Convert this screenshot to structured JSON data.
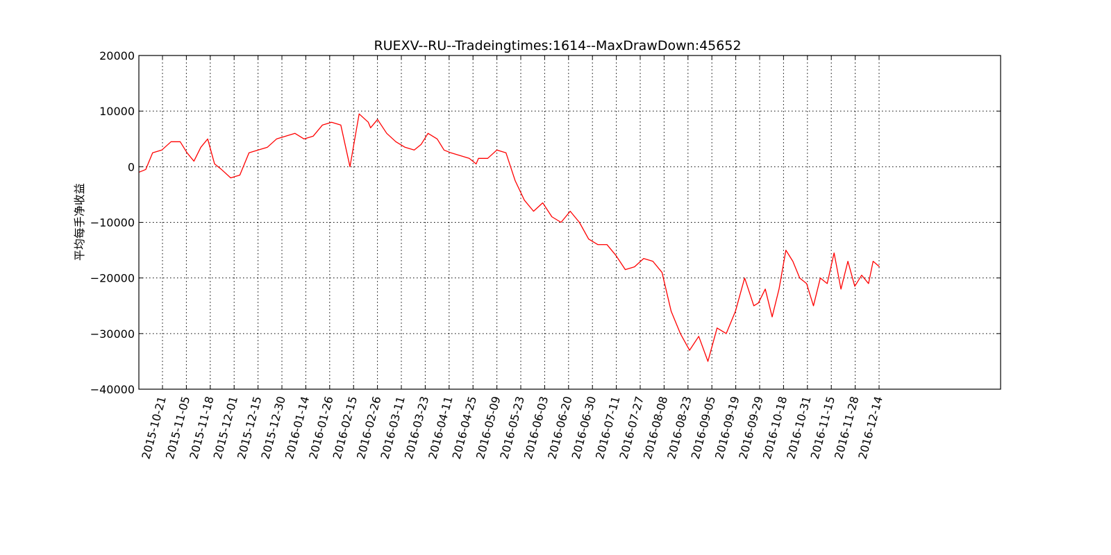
{
  "chart_data": {
    "type": "line",
    "title": "RUEXV--RU--Tradeingtimes:1614--MaxDrawDown:45652",
    "xlabel": "",
    "ylabel": "平均每手净收益",
    "ylim": [
      -40000,
      20000
    ],
    "yticks": [
      20000,
      10000,
      0,
      -10000,
      -20000,
      -30000,
      -40000
    ],
    "ytick_labels": [
      "20000",
      "10000",
      "0",
      "−10000",
      "−20000",
      "−30000",
      "−40000"
    ],
    "xticks": [
      "2015-10-21",
      "2015-11-05",
      "2015-11-18",
      "2015-12-01",
      "2015-12-15",
      "2015-12-30",
      "2016-01-14",
      "2016-01-26",
      "2016-02-15",
      "2016-02-26",
      "2016-03-11",
      "2016-03-23",
      "2016-04-11",
      "2016-04-25",
      "2016-05-09",
      "2016-05-23",
      "2016-06-03",
      "2016-06-20",
      "2016-06-30",
      "2016-07-11",
      "2016-07-27",
      "2016-08-08",
      "2016-08-23",
      "2016-09-05",
      "2016-09-19",
      "2016-09-29",
      "2016-10-18",
      "2016-10-31",
      "2016-11-15",
      "2016-11-28",
      "2016-12-14"
    ],
    "grid": true,
    "line_color": "#ff0000",
    "x_count": 1614,
    "x": [
      0,
      15,
      30,
      50,
      70,
      90,
      105,
      120,
      135,
      150,
      165,
      180,
      200,
      220,
      240,
      260,
      280,
      300,
      320,
      340,
      360,
      380,
      400,
      420,
      440,
      460,
      480,
      500,
      505,
      520,
      540,
      560,
      580,
      600,
      615,
      630,
      650,
      665,
      680,
      700,
      720,
      735,
      740,
      760,
      780,
      800,
      820,
      840,
      860,
      880,
      900,
      920,
      940,
      960,
      980,
      1000,
      1020,
      1040,
      1060,
      1080,
      1100,
      1120,
      1140,
      1160,
      1180,
      1200,
      1220,
      1240,
      1260,
      1280,
      1300,
      1320,
      1340,
      1350,
      1365,
      1380,
      1395,
      1410,
      1425,
      1440,
      1455,
      1470,
      1485,
      1500,
      1515,
      1530,
      1545,
      1560,
      1575,
      1590,
      1600,
      1614
    ],
    "values": [
      -1000,
      -500,
      2500,
      3000,
      4500,
      4500,
      2500,
      1000,
      3500,
      5000,
      500,
      -500,
      -2000,
      -1500,
      2500,
      3000,
      3500,
      5000,
      5500,
      6000,
      5000,
      5500,
      7500,
      8000,
      7500,
      0,
      9500,
      8000,
      7000,
      8500,
      6000,
      4500,
      3500,
      3000,
      4000,
      6000,
      5000,
      3000,
      2500,
      2000,
      1500,
      500,
      1500,
      1500,
      3000,
      2500,
      -2500,
      -6000,
      -8000,
      -6500,
      -9000,
      -10000,
      -8000,
      -10000,
      -13000,
      -14000,
      -14000,
      -16000,
      -18500,
      -18000,
      -16500,
      -17000,
      -19000,
      -26000,
      -30000,
      -33000,
      -30500,
      -35000,
      -29000,
      -30000,
      -26000,
      -20000,
      -25000,
      -24500,
      -22000,
      -27000,
      -22000,
      -15000,
      -17000,
      -20000,
      -21000,
      -25000,
      -20000,
      -21000,
      -15500,
      -22000,
      -17000,
      -21500,
      -19500,
      -21000,
      -17000,
      -18000
    ]
  }
}
